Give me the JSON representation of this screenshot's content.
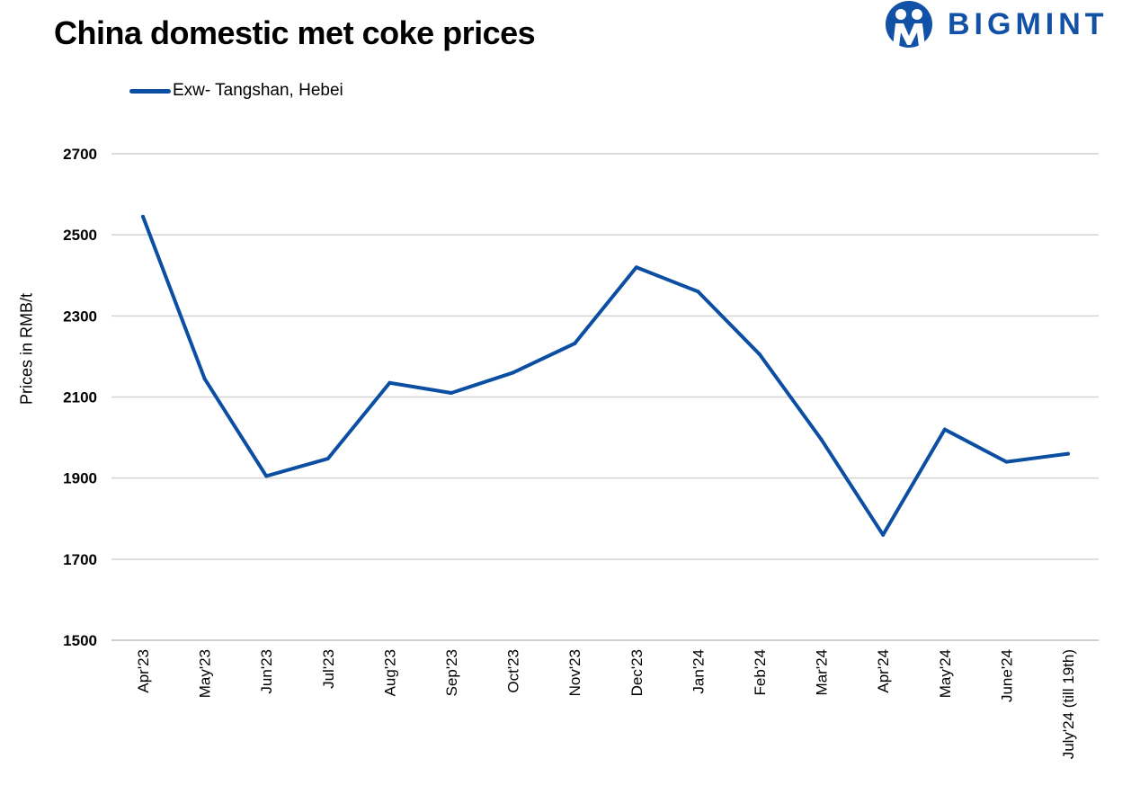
{
  "title": "China domestic met coke prices",
  "brand": {
    "name": "BIGMINT",
    "color": "#1151a6"
  },
  "chart_data": {
    "type": "line",
    "title": "China domestic met coke prices",
    "ylabel": "Prices in RMB/t",
    "xlabel": "",
    "ylim": [
      1500,
      2700
    ],
    "yticks": [
      1500,
      1700,
      1900,
      2100,
      2300,
      2500,
      2700
    ],
    "grid": true,
    "legend_position": "top-left",
    "categories": [
      "Apr'23",
      "May'23",
      "Jun'23",
      "Jul'23",
      "Aug'23",
      "Sep'23",
      "Oct'23",
      "Nov'23",
      "Dec'23",
      "Jan'24",
      "Feb'24",
      "Mar'24",
      "Apr'24",
      "May'24",
      "June'24",
      "July'24 (till 19th)"
    ],
    "series": [
      {
        "name": "Exw- Tangshan, Hebei",
        "color": "#0b4ea2",
        "values": [
          2545,
          2145,
          1905,
          1948,
          2135,
          2110,
          2160,
          2232,
          2420,
          2360,
          2205,
          1995,
          1760,
          2020,
          1940,
          1960
        ]
      }
    ]
  }
}
